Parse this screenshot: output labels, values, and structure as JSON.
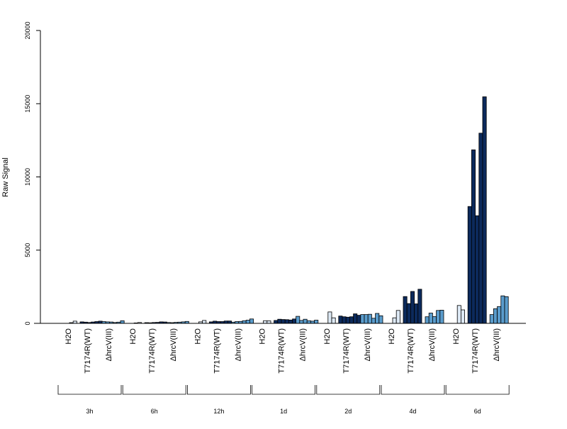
{
  "chart_data": {
    "type": "bar",
    "ylabel": "Raw Signal",
    "ylim": [
      0,
      20000
    ],
    "yticks": [
      "0",
      "5000",
      "10000",
      "15000",
      "20000"
    ],
    "groups": [
      "H2O",
      "T7174R(WT)",
      "ΔhrcV(III)"
    ],
    "timepoints": [
      "3h",
      "6h",
      "12h",
      "1d",
      "2d",
      "4d",
      "6d"
    ],
    "colors": {
      "H2O": "#dce8f4",
      "T7174R(WT)": "#0c2a5c",
      "ΔhrcV(III)": "#5a9ccc"
    },
    "values": [
      {
        "H2O": [
          50,
          150
        ],
        "T7174R(WT)": [
          100,
          80,
          60,
          90,
          120,
          150
        ],
        "ΔhrcV(III)": [
          120,
          100,
          90,
          60,
          80,
          180
        ]
      },
      {
        "H2O": [
          30,
          60
        ],
        "T7174R(WT)": [
          50,
          40,
          60,
          70,
          100,
          90
        ],
        "ΔhrcV(III)": [
          60,
          50,
          70,
          80,
          100,
          130
        ]
      },
      {
        "H2O": [
          100,
          200
        ],
        "T7174R(WT)": [
          100,
          150,
          120,
          120,
          160,
          160
        ],
        "ΔhrcV(III)": [
          80,
          120,
          130,
          180,
          220,
          300
        ]
      },
      {
        "H2O": [
          180,
          170
        ],
        "T7174R(WT)": [
          200,
          280,
          260,
          250,
          230,
          300
        ],
        "ΔhrcV(III)": [
          480,
          200,
          280,
          180,
          150,
          220
        ]
      },
      {
        "H2O": [
          780,
          380
        ],
        "T7174R(WT)": [
          500,
          450,
          420,
          450,
          650,
          550
        ],
        "ΔhrcV(III)": [
          600,
          600,
          620,
          350,
          680,
          520
        ]
      },
      {
        "H2O": [
          380,
          880
        ],
        "T7174R(WT)": [
          1830,
          1350,
          2180,
          1330,
          2330,
          0
        ],
        "ΔhrcV(III)": [
          450,
          700,
          460,
          880,
          900,
          0
        ]
      },
      {
        "H2O": [
          1220,
          920
        ],
        "T7174R(WT)": [
          7980,
          11850,
          7350,
          12990,
          15470,
          0
        ],
        "ΔhrcV(III)": [
          600,
          1000,
          1150,
          1880,
          1820,
          0
        ]
      }
    ]
  }
}
